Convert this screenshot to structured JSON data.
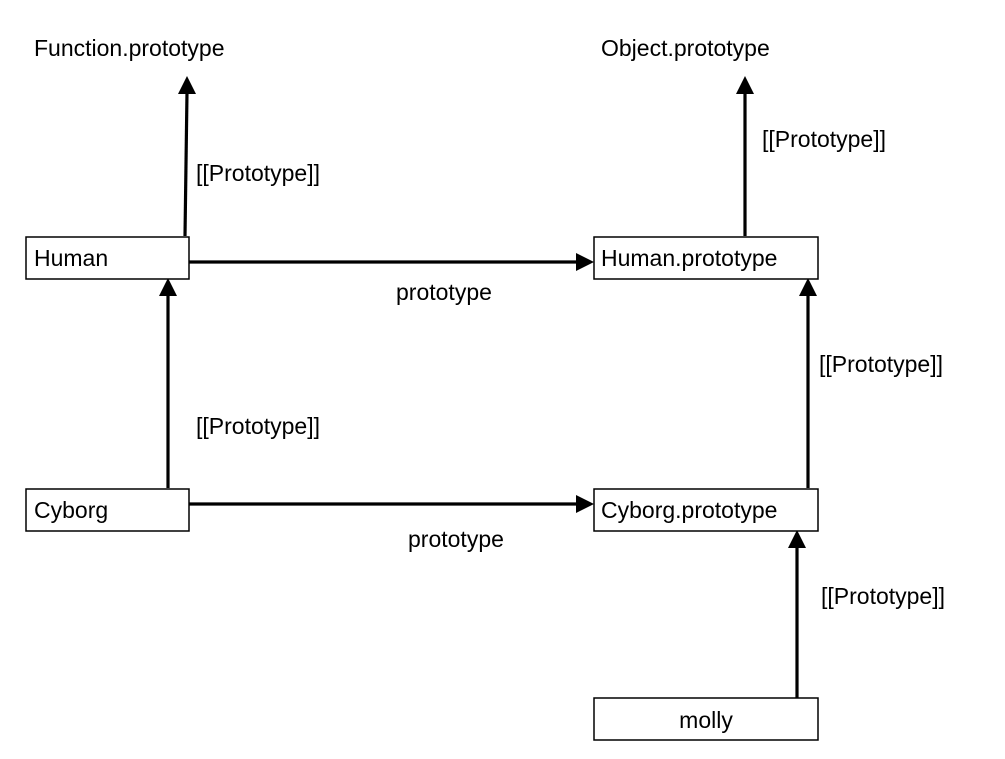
{
  "diagram": {
    "nodes": {
      "human": "Human",
      "human_prototype": "Human.prototype",
      "cyborg": "Cyborg",
      "cyborg_prototype": "Cyborg.prototype",
      "molly": "molly"
    },
    "top_labels": {
      "function_prototype": "Function.prototype",
      "object_prototype": "Object.prototype"
    },
    "edge_labels": {
      "human_to_function_prototype": "[[Prototype]]",
      "human_prototype_to_object_prototype": "[[Prototype]]",
      "human_to_human_prototype": "prototype",
      "cyborg_to_human": "[[Prototype]]",
      "cyborg_prototype_to_human_prototype": "[[Prototype]]",
      "cyborg_to_cyborg_prototype": "prototype",
      "molly_to_cyborg_prototype": "[[Prototype]]"
    },
    "colors": {
      "stroke": "#000000",
      "background": "#ffffff",
      "text": "#000000"
    }
  }
}
